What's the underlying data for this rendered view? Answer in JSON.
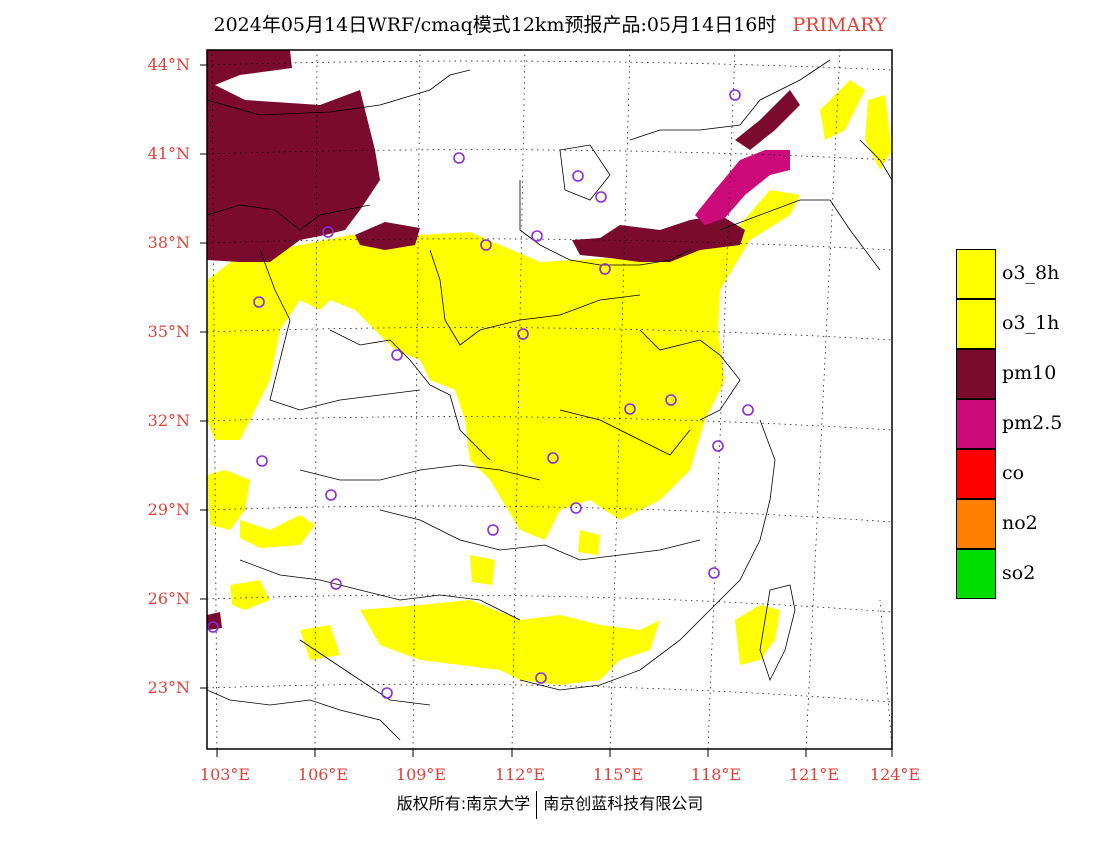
{
  "title": {
    "main": "2024年05月14日WRF/cmaq模式12km预报产品:05月14日16时",
    "tag": "PRIMARY"
  },
  "axes": {
    "latitude_labels": [
      "44°N",
      "41°N",
      "38°N",
      "35°N",
      "32°N",
      "29°N",
      "26°N",
      "23°N"
    ],
    "longitude_labels": [
      "103°E",
      "106°E",
      "109°E",
      "112°E",
      "115°E",
      "118°E",
      "121°E",
      "124°E"
    ]
  },
  "legend": [
    {
      "label": "o3_8h",
      "color": "#ffff00"
    },
    {
      "label": "o3_1h",
      "color": "#ffff00"
    },
    {
      "label": "pm10",
      "color": "#7a0a2e"
    },
    {
      "label": "pm2.5",
      "color": "#cc0a7a"
    },
    {
      "label": "co",
      "color": "#ff0000"
    },
    {
      "label": "no2",
      "color": "#ff8000"
    },
    {
      "label": "so2",
      "color": "#00dd00"
    }
  ],
  "colors": {
    "o3": "#ffff00",
    "pm10": "#7a0a2e",
    "pm25": "#cc0a7a",
    "station_marker": "#8a2be2",
    "label_red": "#e0403a"
  },
  "station_marker_icon": "circle-station-icon",
  "copyright": {
    "left": "版权所有:南京大学",
    "right": "南京创蓝科技有限公司"
  }
}
